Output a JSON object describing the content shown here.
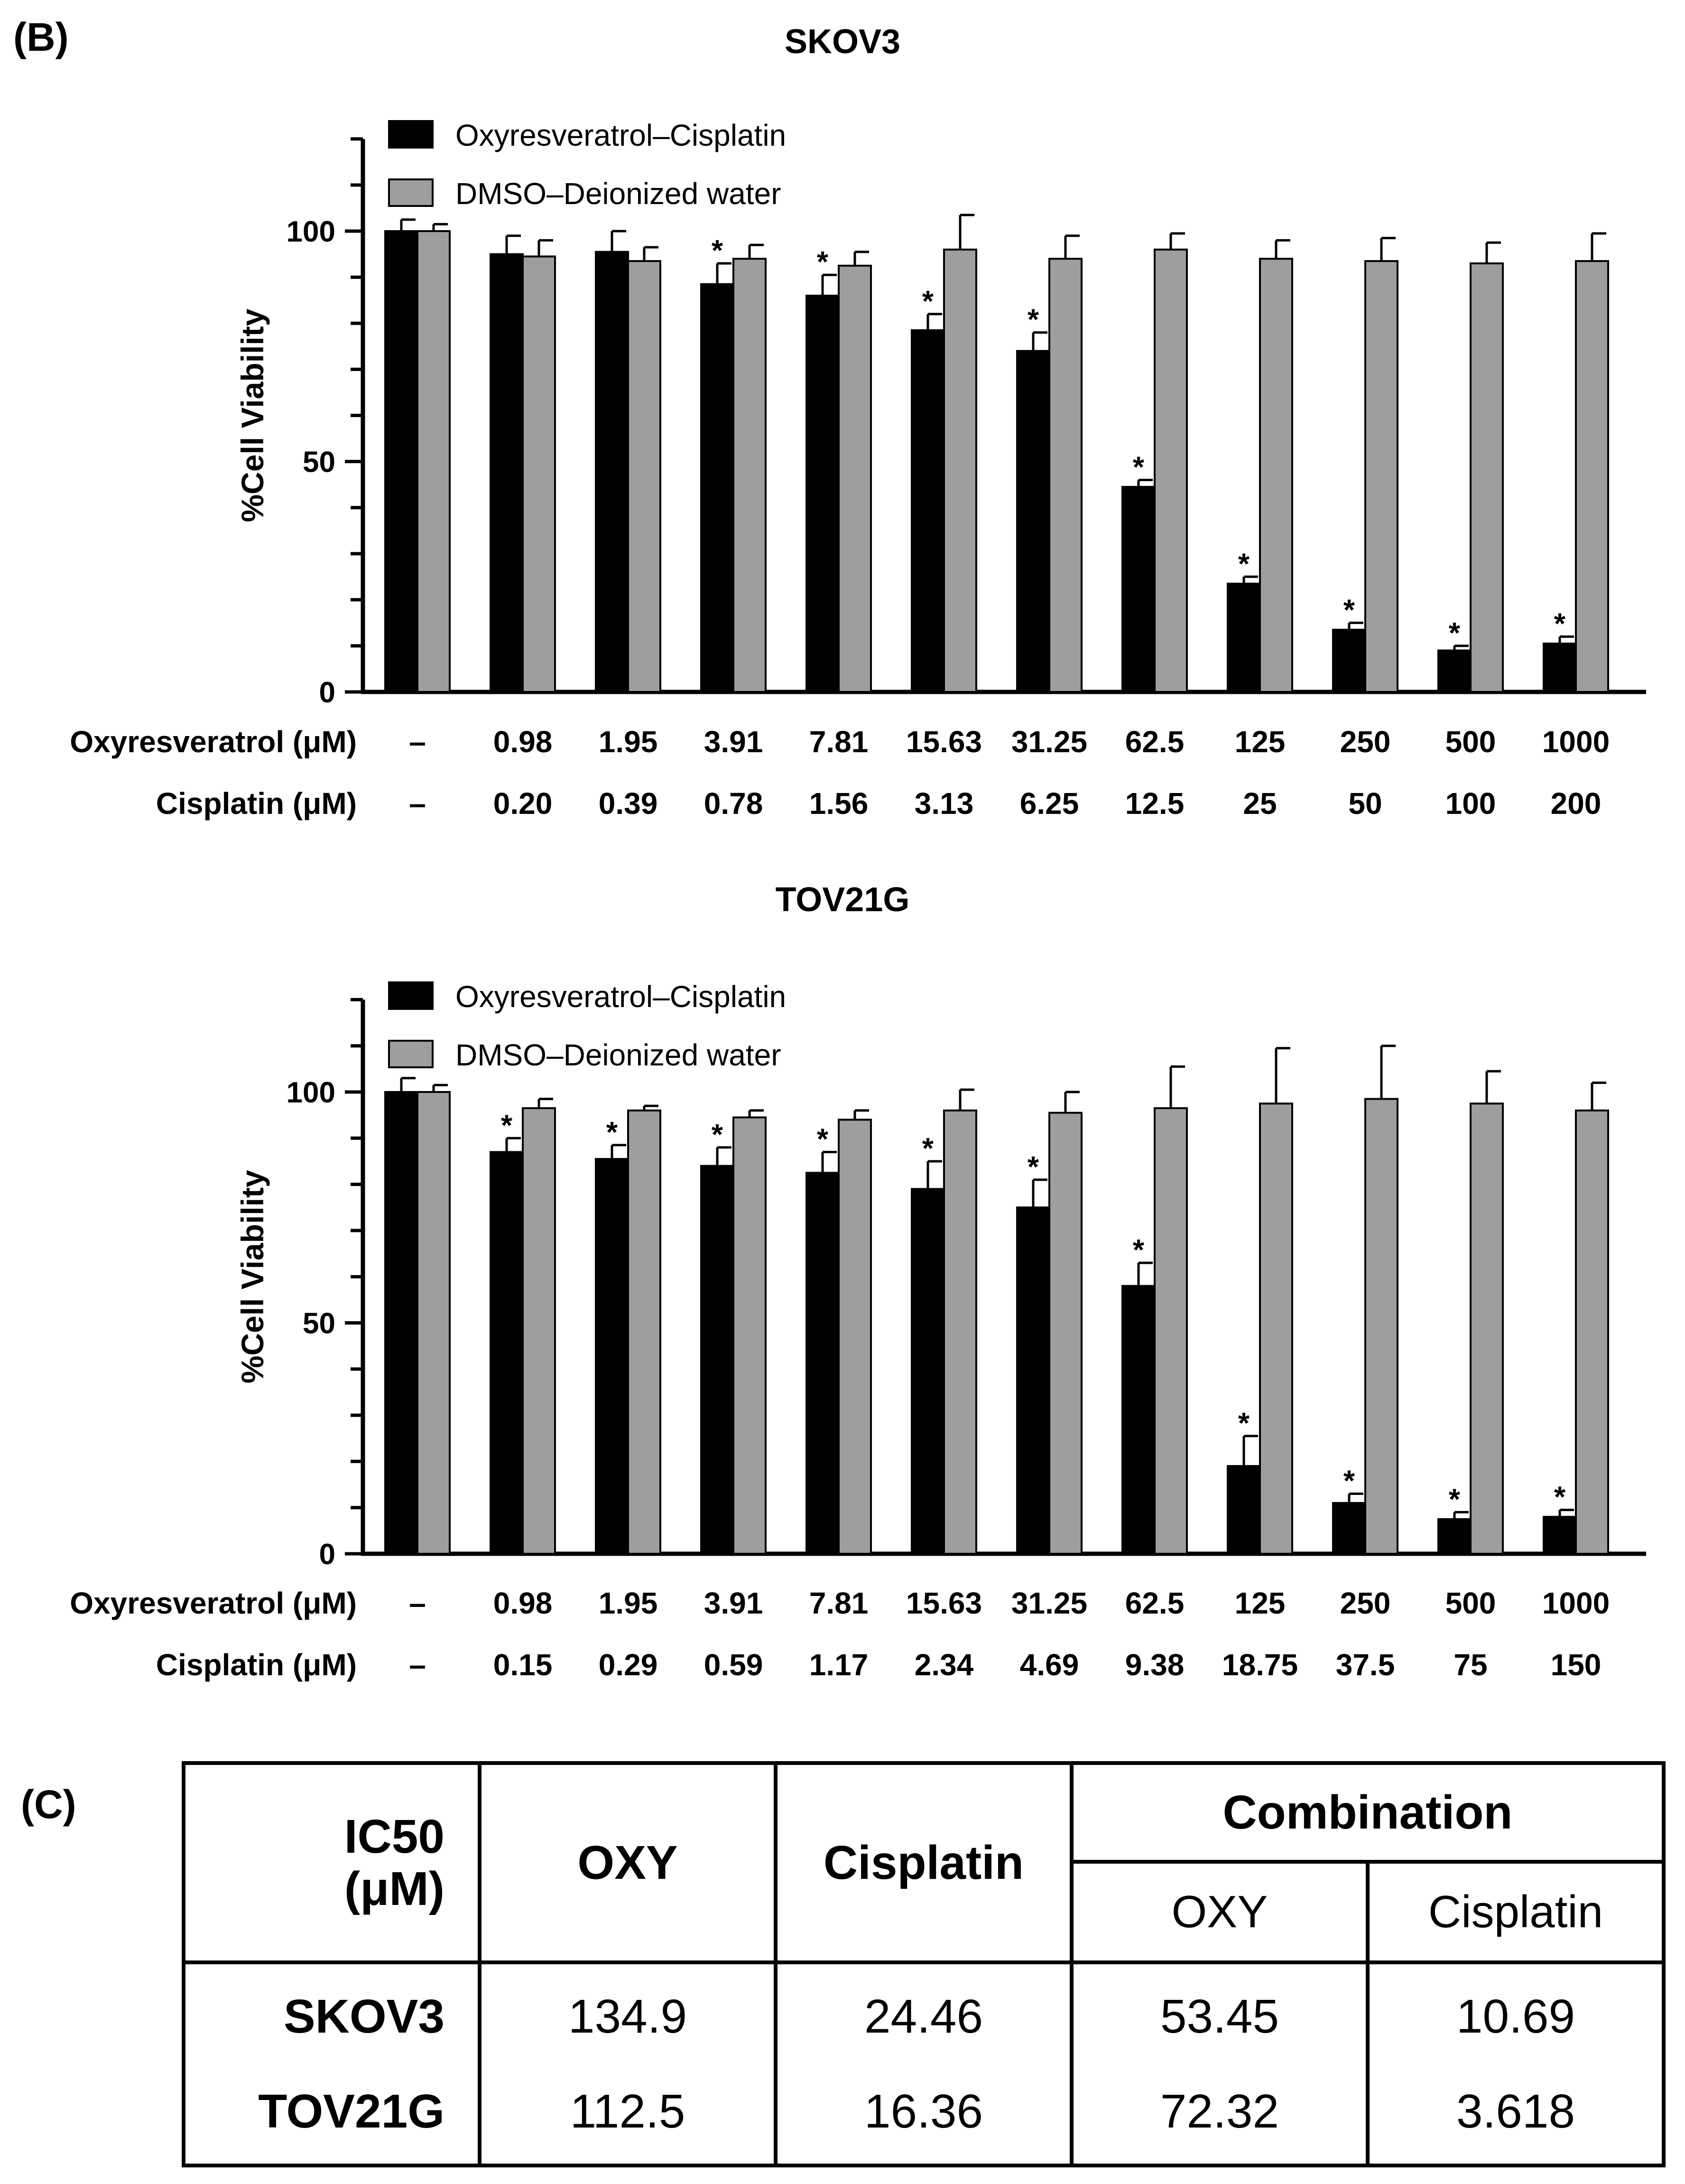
{
  "panel_b_label": "(B)",
  "panel_c_label": "(C)",
  "legend": {
    "series_1": "Oxyresveratrol–Cisplatin",
    "series_2": "DMSO–Deionized water"
  },
  "row_labels": {
    "oxy": "Oxyresveratrol (μM)",
    "cis": "Cisplatin (μM)"
  },
  "significance_marker": "*",
  "chart_data": [
    {
      "type": "bar",
      "title": "SKOV3",
      "xlabel": "",
      "ylabel": "%Cell Viability",
      "ylim": [
        0,
        120
      ],
      "yticks": [
        0,
        50,
        100
      ],
      "categories": [
        "–",
        "0.98",
        "1.95",
        "3.91",
        "7.81",
        "15.63",
        "31.25",
        "62.5",
        "125",
        "250",
        "500",
        "1000"
      ],
      "cisplatin_labels": [
        "–",
        "0.20",
        "0.39",
        "0.78",
        "1.56",
        "3.13",
        "6.25",
        "12.5",
        "25",
        "50",
        "100",
        "200"
      ],
      "series": [
        {
          "name": "Oxyresveratrol–Cisplatin",
          "color": "#000000",
          "values": [
            100,
            95,
            95.5,
            88.5,
            86,
            78.5,
            74,
            44.5,
            23.5,
            13.5,
            9,
            10.5
          ],
          "errors": [
            2.5,
            4,
            4.5,
            4.5,
            4.5,
            3.5,
            4,
            1.5,
            1.5,
            1.5,
            1,
            1.5
          ],
          "significant": [
            false,
            false,
            false,
            true,
            true,
            true,
            true,
            true,
            true,
            true,
            true,
            true
          ]
        },
        {
          "name": "DMSO–Deionized water",
          "color": "#9e9e9e",
          "values": [
            100,
            94.5,
            93.5,
            94,
            92.5,
            96,
            94,
            96,
            94,
            93.5,
            93,
            93.5
          ],
          "errors": [
            1.5,
            3.5,
            3,
            3,
            3,
            7.5,
            5,
            3.5,
            4,
            5,
            4.5,
            6
          ]
        }
      ]
    },
    {
      "type": "bar",
      "title": "TOV21G",
      "xlabel": "",
      "ylabel": "%Cell Viability",
      "ylim": [
        0,
        120
      ],
      "yticks": [
        0,
        50,
        100
      ],
      "categories": [
        "–",
        "0.98",
        "1.95",
        "3.91",
        "7.81",
        "15.63",
        "31.25",
        "62.5",
        "125",
        "250",
        "500",
        "1000"
      ],
      "cisplatin_labels": [
        "–",
        "0.15",
        "0.29",
        "0.59",
        "1.17",
        "2.34",
        "4.69",
        "9.38",
        "18.75",
        "37.5",
        "75",
        "150"
      ],
      "series": [
        {
          "name": "Oxyresveratrol–Cisplatin",
          "color": "#000000",
          "values": [
            100,
            87,
            85.5,
            84,
            82.5,
            79,
            75,
            58,
            19,
            11,
            7.5,
            8
          ],
          "errors": [
            3,
            3,
            3,
            4,
            4.5,
            6,
            6,
            5,
            6.5,
            2,
            1.5,
            1.5
          ],
          "significant": [
            false,
            true,
            true,
            true,
            true,
            true,
            true,
            true,
            true,
            true,
            true,
            true
          ]
        },
        {
          "name": "DMSO–Deionized water",
          "color": "#9e9e9e",
          "values": [
            100,
            96.5,
            96,
            94.5,
            94,
            96,
            95.5,
            96.5,
            97.5,
            98.5,
            97.5,
            96
          ],
          "errors": [
            1.5,
            2,
            1,
            1.5,
            2,
            4.5,
            4.5,
            9,
            12,
            11.5,
            7,
            6
          ]
        }
      ]
    }
  ],
  "ic50_table": {
    "corner_line1": "IC50",
    "corner_line2": "(μM)",
    "col_oxy": "OXY",
    "col_cisplatin": "Cisplatin",
    "col_combination": "Combination",
    "sub_oxy": "OXY",
    "sub_cisplatin": "Cisplatin",
    "rows": [
      {
        "name": "SKOV3",
        "oxy": "134.9",
        "cisplatin": "24.46",
        "comb_oxy": "53.45",
        "comb_cisplatin": "10.69"
      },
      {
        "name": "TOV21G",
        "oxy": "112.5",
        "cisplatin": "16.36",
        "comb_oxy": "72.32",
        "comb_cisplatin": "3.618"
      }
    ]
  }
}
